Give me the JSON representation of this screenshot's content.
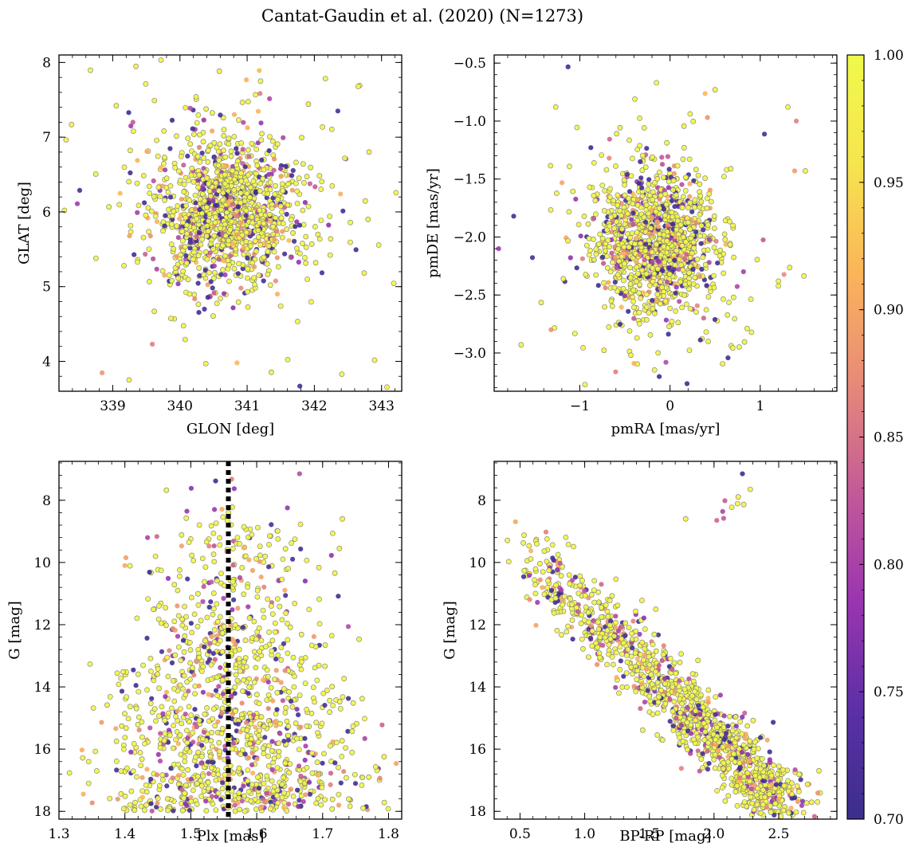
{
  "figure": {
    "title": "Cantat-Gaudin et al. (2020) (N=1273)",
    "background": "#ffffff",
    "marker_edge_color": "#7a7a7a",
    "colormap": "plasma"
  },
  "chart_data": [
    {
      "type": "scatter",
      "id": "sky",
      "xlabel": "GLON [deg]",
      "ylabel": "GLAT [deg]",
      "xlim": [
        338.2,
        343.3
      ],
      "ylim": [
        3.6,
        8.1
      ],
      "xticks": [
        339,
        340,
        341,
        342,
        343
      ],
      "xtick_labels": [
        "339",
        "340",
        "341",
        "342",
        "343"
      ],
      "yticks": [
        4,
        5,
        6,
        7,
        8
      ],
      "ytick_labels": [
        "4",
        "5",
        "6",
        "7",
        "8"
      ],
      "distribution": {
        "x_center": 340.7,
        "x_sigma": 0.55,
        "y_center": 5.98,
        "y_sigma": 0.5
      },
      "notable_points": [
        [
          341.2,
          7.75
        ],
        [
          342.35,
          7.35
        ],
        [
          340.85,
          3.98
        ],
        [
          338.75,
          5.38
        ],
        [
          342.8,
          5.9
        ],
        [
          339.3,
          7.2
        ]
      ]
    },
    {
      "type": "scatter",
      "id": "proper-motion",
      "xlabel": "pmRA [mas/yr]",
      "ylabel": "pmDE [mas/yr]",
      "xlim": [
        -1.95,
        1.85
      ],
      "ylim": [
        -3.33,
        -0.43
      ],
      "xticks": [
        -1,
        0,
        1
      ],
      "xtick_labels": [
        "−1",
        "0",
        "1"
      ],
      "yticks": [
        -3.0,
        -2.5,
        -2.0,
        -1.5,
        -1.0,
        -0.5
      ],
      "ytick_labels": [
        "−3.0",
        "−2.5",
        "−2.0",
        "−1.5",
        "−1.0",
        "−0.5"
      ],
      "distribution": {
        "x_center": -0.15,
        "x_sigma": 0.33,
        "y_center": -2.05,
        "y_sigma": 0.3
      },
      "notable_points": [
        [
          -1.65,
          -2.93
        ],
        [
          -0.15,
          -0.67
        ],
        [
          1.5,
          -1.43
        ],
        [
          1.4,
          -1.0
        ],
        [
          -0.4,
          -3.09
        ],
        [
          0.5,
          -0.73
        ]
      ]
    },
    {
      "type": "scatter",
      "id": "parallax-magnitude",
      "xlabel": "Plx [mas]",
      "ylabel": "G [mag]",
      "xlim": [
        1.3,
        1.82
      ],
      "ylim": [
        18.25,
        6.75
      ],
      "xticks": [
        1.3,
        1.4,
        1.5,
        1.6,
        1.7,
        1.8
      ],
      "xtick_labels": [
        "1.3",
        "1.4",
        "1.5",
        "1.6",
        "1.7",
        "1.8"
      ],
      "yticks": [
        8,
        10,
        12,
        14,
        16,
        18
      ],
      "ytick_labels": [
        "8",
        "10",
        "12",
        "14",
        "16",
        "18"
      ],
      "vertical_line": {
        "x": 1.557,
        "style": "dotted",
        "color": "#000000"
      },
      "distribution": {
        "x_center": 1.56,
        "x_sigma": 0.085,
        "y_min": 7.2,
        "y_max": 18.0
      },
      "notable_points": [
        [
          1.665,
          7.15
        ],
        [
          1.73,
          8.6
        ],
        [
          1.4,
          10.1
        ],
        [
          1.345,
          17.1
        ],
        [
          1.77,
          16.9
        ]
      ]
    },
    {
      "type": "scatter",
      "id": "color-magnitude",
      "xlabel": "BP-RP [mag]",
      "ylabel": "G [mag]",
      "xlim": [
        0.3,
        2.95
      ],
      "ylim": [
        18.25,
        6.75
      ],
      "xticks": [
        0.5,
        1.0,
        1.5,
        2.0,
        2.5
      ],
      "xtick_labels": [
        "0.5",
        "1.0",
        "1.5",
        "2.0",
        "2.5"
      ],
      "yticks": [
        8,
        10,
        12,
        14,
        16,
        18
      ],
      "ytick_labels": [
        "8",
        "10",
        "12",
        "14",
        "16",
        "18"
      ],
      "sequence": {
        "bright_end": [
          0.45,
          9.2
        ],
        "faint_end": [
          2.55,
          17.9
        ]
      },
      "clump": {
        "x": 2.1,
        "y": 8.2
      },
      "notable_points": [
        [
          2.22,
          7.15
        ],
        [
          2.28,
          7.65
        ],
        [
          1.78,
          8.6
        ],
        [
          1.55,
          11.5
        ],
        [
          2.8,
          17.7
        ]
      ]
    }
  ],
  "colorbar": {
    "vmin": 0.7,
    "vmax": 1.0,
    "ticks": [
      0.7,
      0.75,
      0.8,
      0.85,
      0.9,
      0.95,
      1.0
    ],
    "tick_labels": [
      "0.70",
      "0.75",
      "0.80",
      "0.85",
      "0.90",
      "0.95",
      "1.00"
    ],
    "colors": [
      "#3b2f8c",
      "#5c2fa6",
      "#9a35b0",
      "#c45a98",
      "#e88a78",
      "#fbb45a",
      "#f6e54e",
      "#f0f94c"
    ]
  }
}
